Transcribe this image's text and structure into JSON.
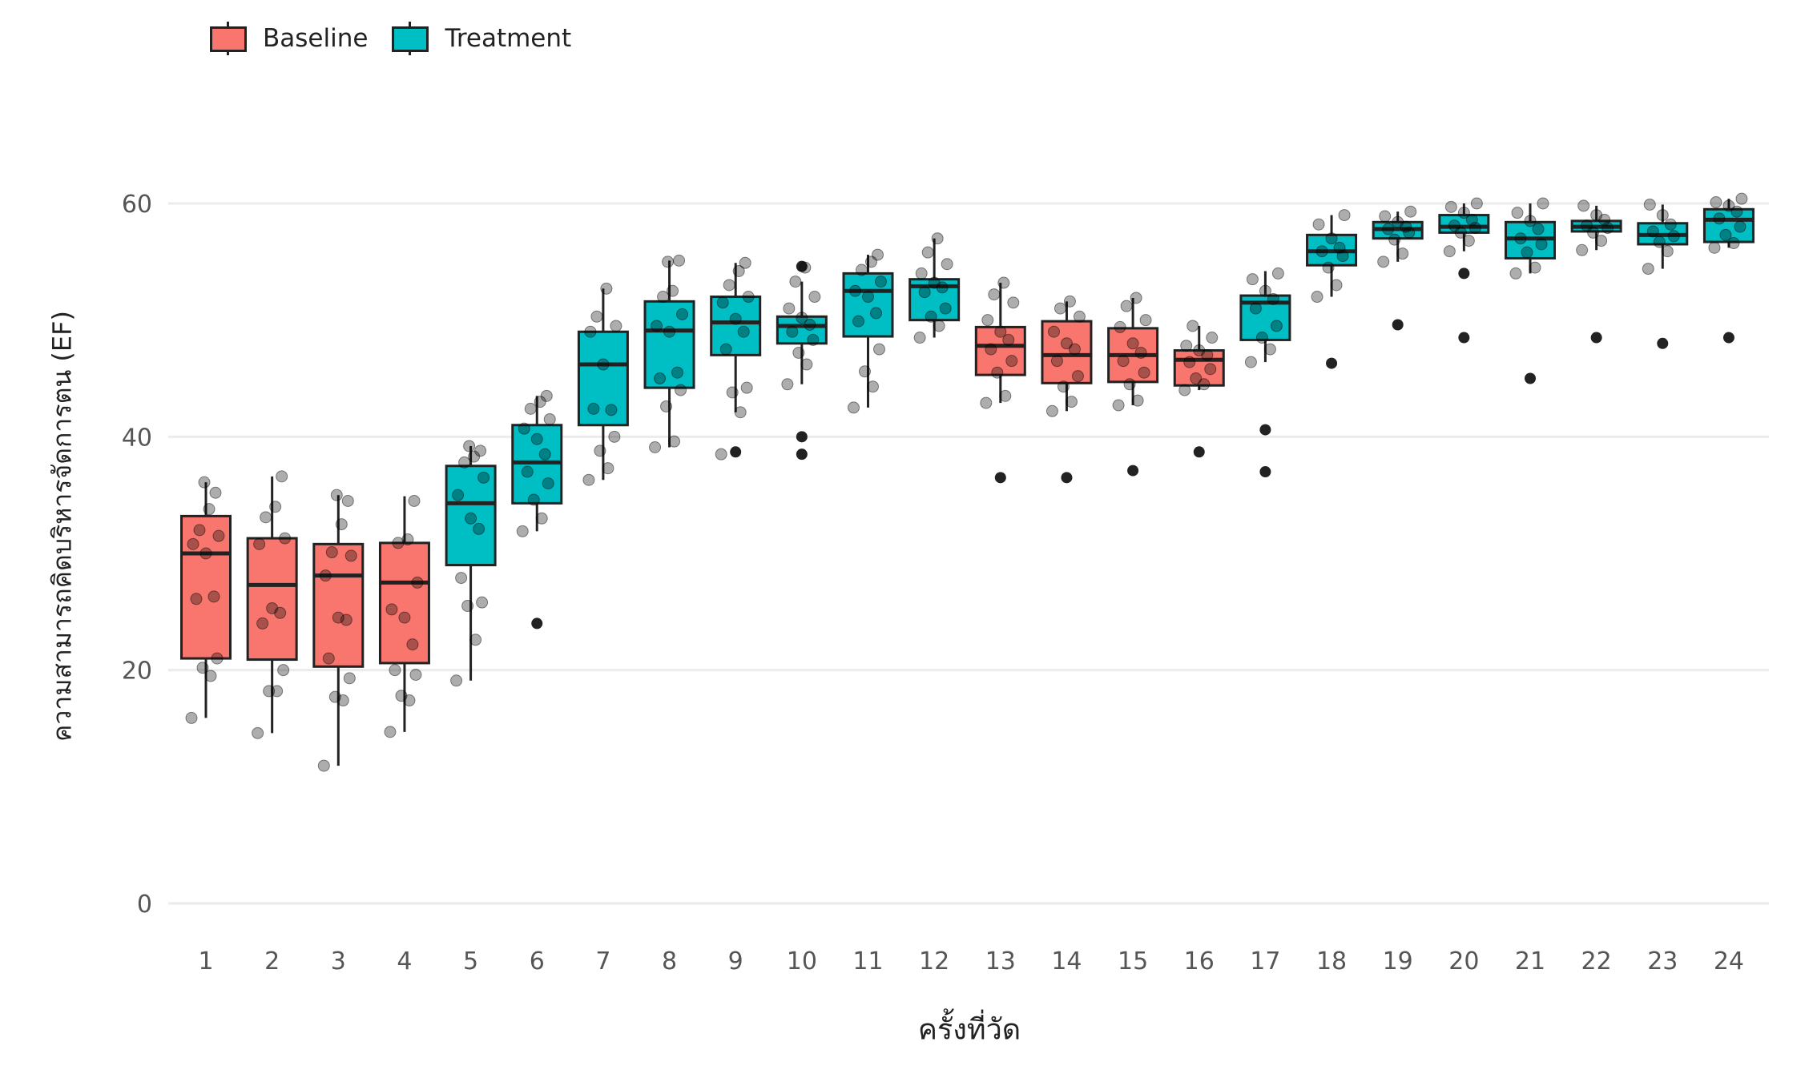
{
  "chart_data": {
    "type": "boxplot",
    "title": "",
    "xlabel": "ครั้งที่วัด",
    "ylabel": "ความสามารถคิดบริหารจัดการตน (EF)",
    "ylim": [
      0,
      60
    ],
    "yticks": [
      0,
      20,
      40,
      60
    ],
    "grid": true,
    "legend": {
      "position": "top-left",
      "entries": [
        {
          "name": "Baseline",
          "color": "#F8766D"
        },
        {
          "name": "Treatment",
          "color": "#00BFC4"
        }
      ]
    },
    "categories": [
      "1",
      "2",
      "3",
      "4",
      "5",
      "6",
      "7",
      "8",
      "9",
      "10",
      "11",
      "12",
      "13",
      "14",
      "15",
      "16",
      "17",
      "18",
      "19",
      "20",
      "21",
      "22",
      "23",
      "24"
    ],
    "boxes": [
      {
        "x": "1",
        "phase": "Baseline",
        "q1": 21.0,
        "median": 30.0,
        "q3": 33.2,
        "whisker_low": 15.9,
        "whisker_high": 36.1,
        "outliers": [],
        "points": [
          15.9,
          19.5,
          20.2,
          21.0,
          26.1,
          26.3,
          30.0,
          30.8,
          31.5,
          32.0,
          33.8,
          35.2,
          36.1
        ]
      },
      {
        "x": "2",
        "phase": "Baseline",
        "q1": 20.9,
        "median": 27.3,
        "q3": 31.3,
        "whisker_low": 14.6,
        "whisker_high": 36.6,
        "outliers": [],
        "points": [
          14.6,
          18.2,
          18.2,
          20.0,
          24.0,
          24.9,
          25.3,
          30.8,
          31.3,
          33.1,
          34.0,
          36.6
        ]
      },
      {
        "x": "3",
        "phase": "Baseline",
        "q1": 20.3,
        "median": 28.1,
        "q3": 30.8,
        "whisker_low": 11.8,
        "whisker_high": 35.0,
        "outliers": [],
        "points": [
          11.8,
          17.4,
          17.7,
          19.3,
          21.0,
          24.3,
          24.5,
          28.1,
          29.8,
          30.1,
          32.5,
          34.5,
          35.0
        ]
      },
      {
        "x": "4",
        "phase": "Baseline",
        "q1": 20.6,
        "median": 27.5,
        "q3": 30.9,
        "whisker_low": 14.7,
        "whisker_high": 34.9,
        "outliers": [],
        "points": [
          14.7,
          17.4,
          17.8,
          19.6,
          20.0,
          22.2,
          24.5,
          25.2,
          27.5,
          30.9,
          31.2,
          34.5
        ]
      },
      {
        "x": "5",
        "phase": "Treatment",
        "q1": 29.0,
        "median": 34.3,
        "q3": 37.5,
        "whisker_low": 19.1,
        "whisker_high": 39.2,
        "outliers": [],
        "points": [
          19.1,
          22.6,
          25.5,
          25.8,
          27.9,
          32.1,
          33.0,
          35.0,
          36.5,
          37.8,
          38.3,
          38.8,
          39.2
        ]
      },
      {
        "x": "6",
        "phase": "Treatment",
        "q1": 34.3,
        "median": 37.8,
        "q3": 41.0,
        "whisker_low": 31.9,
        "whisker_high": 43.5,
        "outliers": [
          24.0
        ],
        "points": [
          31.9,
          33.0,
          34.6,
          36.0,
          37.0,
          38.5,
          39.8,
          40.7,
          41.5,
          42.4,
          43.0,
          43.5
        ]
      },
      {
        "x": "7",
        "phase": "Treatment",
        "q1": 41.0,
        "median": 46.2,
        "q3": 49.0,
        "whisker_low": 36.3,
        "whisker_high": 52.7,
        "outliers": [],
        "points": [
          36.3,
          37.3,
          38.8,
          40.0,
          42.4,
          42.3,
          46.2,
          49.0,
          49.5,
          50.3,
          52.7
        ]
      },
      {
        "x": "8",
        "phase": "Treatment",
        "q1": 44.2,
        "median": 49.1,
        "q3": 51.6,
        "whisker_low": 39.1,
        "whisker_high": 55.1,
        "outliers": [],
        "points": [
          39.1,
          39.6,
          42.6,
          44.0,
          45.0,
          45.5,
          49.0,
          49.5,
          50.5,
          52.0,
          52.5,
          55.1,
          55.0
        ]
      },
      {
        "x": "9",
        "phase": "Treatment",
        "q1": 47.0,
        "median": 49.8,
        "q3": 52.0,
        "whisker_low": 42.1,
        "whisker_high": 54.9,
        "outliers": [
          38.7
        ],
        "points": [
          38.5,
          42.1,
          43.8,
          44.2,
          47.5,
          49.0,
          50.1,
          51.5,
          52.0,
          53.0,
          54.2,
          54.9
        ]
      },
      {
        "x": "10",
        "phase": "Treatment",
        "q1": 48.0,
        "median": 49.5,
        "q3": 50.3,
        "whisker_low": 44.5,
        "whisker_high": 53.3,
        "outliers": [
          40.0,
          38.5,
          54.6
        ],
        "points": [
          44.5,
          46.2,
          47.2,
          48.3,
          49.0,
          49.6,
          50.2,
          51.0,
          52.0,
          53.3,
          54.5
        ]
      },
      {
        "x": "11",
        "phase": "Treatment",
        "q1": 48.6,
        "median": 52.5,
        "q3": 54.0,
        "whisker_low": 42.5,
        "whisker_high": 55.6,
        "outliers": [],
        "points": [
          42.5,
          44.3,
          45.6,
          47.5,
          49.9,
          50.6,
          52.0,
          52.5,
          53.3,
          54.3,
          55.0,
          55.6
        ]
      },
      {
        "x": "12",
        "phase": "Treatment",
        "q1": 50.0,
        "median": 52.9,
        "q3": 53.5,
        "whisker_low": 48.5,
        "whisker_high": 57.0,
        "outliers": [],
        "points": [
          48.5,
          49.5,
          50.3,
          51.0,
          52.4,
          52.8,
          53.2,
          54.0,
          54.8,
          55.8,
          57.0
        ]
      },
      {
        "x": "13",
        "phase": "Baseline",
        "q1": 45.3,
        "median": 47.8,
        "q3": 49.4,
        "whisker_low": 42.9,
        "whisker_high": 53.2,
        "outliers": [
          36.5
        ],
        "points": [
          42.9,
          43.5,
          45.5,
          46.5,
          47.5,
          48.3,
          49.0,
          50.0,
          51.5,
          52.2,
          53.2
        ]
      },
      {
        "x": "14",
        "phase": "Baseline",
        "q1": 44.6,
        "median": 47.0,
        "q3": 49.9,
        "whisker_low": 42.2,
        "whisker_high": 51.6,
        "outliers": [
          36.5
        ],
        "points": [
          42.2,
          43.0,
          44.3,
          45.2,
          46.5,
          47.5,
          48.0,
          49.0,
          50.3,
          51.0,
          51.6
        ]
      },
      {
        "x": "15",
        "phase": "Baseline",
        "q1": 44.7,
        "median": 47.0,
        "q3": 49.3,
        "whisker_low": 42.7,
        "whisker_high": 51.9,
        "outliers": [
          37.1
        ],
        "points": [
          42.7,
          43.1,
          44.5,
          45.5,
          46.5,
          47.2,
          48.0,
          49.4,
          50.0,
          51.2,
          51.9
        ]
      },
      {
        "x": "16",
        "phase": "Baseline",
        "q1": 44.4,
        "median": 46.6,
        "q3": 47.4,
        "whisker_low": 44.0,
        "whisker_high": 49.5,
        "outliers": [
          38.7
        ],
        "points": [
          44.0,
          44.5,
          45.0,
          45.8,
          46.4,
          47.0,
          47.4,
          47.8,
          48.5,
          49.5
        ]
      },
      {
        "x": "17",
        "phase": "Treatment",
        "q1": 48.3,
        "median": 51.5,
        "q3": 52.1,
        "whisker_low": 46.4,
        "whisker_high": 54.2,
        "outliers": [
          40.6,
          37.0
        ],
        "points": [
          46.4,
          47.5,
          48.5,
          49.5,
          51.0,
          51.8,
          52.5,
          53.5,
          54.0
        ]
      },
      {
        "x": "18",
        "phase": "Treatment",
        "q1": 54.7,
        "median": 55.9,
        "q3": 57.3,
        "whisker_low": 52.0,
        "whisker_high": 59.0,
        "outliers": [
          46.3
        ],
        "points": [
          52.0,
          53.0,
          54.5,
          55.5,
          55.9,
          56.2,
          57.0,
          58.2,
          59.0
        ]
      },
      {
        "x": "19",
        "phase": "Treatment",
        "q1": 57.0,
        "median": 57.8,
        "q3": 58.4,
        "whisker_low": 55.0,
        "whisker_high": 59.3,
        "outliers": [
          49.6
        ],
        "points": [
          55.0,
          55.7,
          56.9,
          57.5,
          57.8,
          58.0,
          58.4,
          58.9,
          59.3
        ]
      },
      {
        "x": "20",
        "phase": "Treatment",
        "q1": 57.5,
        "median": 58.0,
        "q3": 59.0,
        "whisker_low": 55.9,
        "whisker_high": 60.0,
        "outliers": [
          54.0,
          48.5
        ],
        "points": [
          55.9,
          56.8,
          57.5,
          57.9,
          58.1,
          58.6,
          59.2,
          59.7,
          60.0
        ]
      },
      {
        "x": "21",
        "phase": "Treatment",
        "q1": 55.3,
        "median": 57.0,
        "q3": 58.4,
        "whisker_low": 54.0,
        "whisker_high": 60.0,
        "outliers": [
          45.0
        ],
        "points": [
          54.0,
          54.5,
          55.8,
          56.5,
          57.0,
          57.8,
          58.5,
          59.2,
          60.0
        ]
      },
      {
        "x": "22",
        "phase": "Treatment",
        "q1": 57.6,
        "median": 58.0,
        "q3": 58.5,
        "whisker_low": 56.0,
        "whisker_high": 59.8,
        "outliers": [
          48.5
        ],
        "points": [
          56.0,
          56.8,
          57.5,
          57.9,
          58.1,
          58.6,
          59.0,
          59.8
        ]
      },
      {
        "x": "23",
        "phase": "Treatment",
        "q1": 56.5,
        "median": 57.3,
        "q3": 58.3,
        "whisker_low": 54.4,
        "whisker_high": 59.9,
        "outliers": [
          48.0
        ],
        "points": [
          54.4,
          55.9,
          56.7,
          57.2,
          57.6,
          58.2,
          59.0,
          59.9
        ]
      },
      {
        "x": "24",
        "phase": "Treatment",
        "q1": 56.7,
        "median": 58.6,
        "q3": 59.5,
        "whisker_low": 56.2,
        "whisker_high": 60.4,
        "outliers": [
          48.5
        ],
        "points": [
          56.2,
          56.6,
          57.3,
          58.0,
          58.7,
          59.3,
          59.8,
          60.1,
          60.4
        ]
      }
    ]
  }
}
